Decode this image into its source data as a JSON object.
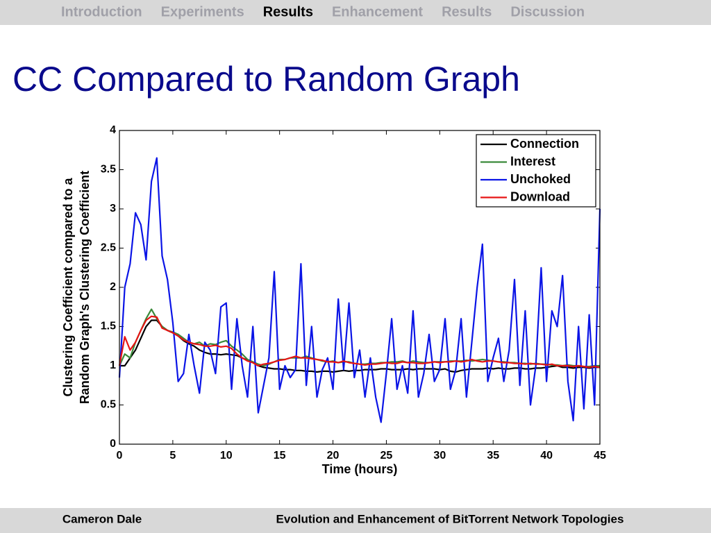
{
  "nav": {
    "items": [
      "Introduction",
      "Experiments",
      "Results",
      "Enhancement",
      "Results",
      "Discussion"
    ],
    "active": 2
  },
  "title": "CC Compared to Random Graph",
  "footer": {
    "author": "Cameron Dale",
    "talk": "Evolution and Enhancement of BitTorrent Network Topologies"
  },
  "chart_data": {
    "type": "line",
    "xlabel": "Time (hours)",
    "ylabel": [
      "Clustering Coefficient compared to a",
      "Random Graph's Clustering Coefficient"
    ],
    "xlim": [
      0,
      45
    ],
    "xticks": [
      0,
      5,
      10,
      15,
      20,
      25,
      30,
      35,
      40,
      45
    ],
    "ylim": [
      0,
      4
    ],
    "yticks": [
      0,
      0.5,
      1,
      1.5,
      2,
      2.5,
      3,
      3.5,
      4
    ],
    "legend": "upper right",
    "x": [
      0,
      0.5,
      1,
      1.5,
      2,
      2.5,
      3,
      3.5,
      4,
      4.5,
      5,
      5.5,
      6,
      6.5,
      7,
      7.5,
      8,
      8.5,
      9,
      9.5,
      10,
      10.5,
      11,
      11.5,
      12,
      12.5,
      13,
      13.5,
      14,
      14.5,
      15,
      15.5,
      16,
      16.5,
      17,
      17.5,
      18,
      18.5,
      19,
      19.5,
      20,
      20.5,
      21,
      21.5,
      22,
      22.5,
      23,
      23.5,
      24,
      24.5,
      25,
      25.5,
      26,
      26.5,
      27,
      27.5,
      28,
      28.5,
      29,
      29.5,
      30,
      30.5,
      31,
      31.5,
      32,
      32.5,
      33,
      33.5,
      34,
      34.5,
      35,
      35.5,
      36,
      36.5,
      37,
      37.5,
      38,
      38.5,
      39,
      39.5,
      40,
      40.5,
      41,
      41.5,
      42,
      42.5,
      43,
      43.5,
      44,
      44.5,
      45
    ],
    "series": [
      {
        "name": "Connection",
        "color": "#000000",
        "values": [
          1.0,
          1.0,
          1.1,
          1.2,
          1.35,
          1.5,
          1.58,
          1.58,
          1.5,
          1.45,
          1.42,
          1.38,
          1.32,
          1.28,
          1.25,
          1.2,
          1.17,
          1.15,
          1.15,
          1.14,
          1.15,
          1.14,
          1.13,
          1.1,
          1.07,
          1.04,
          1.0,
          0.98,
          0.97,
          0.96,
          0.96,
          0.95,
          0.95,
          0.94,
          0.94,
          0.93,
          0.93,
          0.92,
          0.93,
          0.93,
          0.92,
          0.93,
          0.94,
          0.93,
          0.94,
          0.94,
          0.95,
          0.95,
          0.95,
          0.96,
          0.96,
          0.95,
          0.95,
          0.95,
          0.96,
          0.95,
          0.96,
          0.96,
          0.96,
          0.96,
          0.95,
          0.96,
          0.93,
          0.92,
          0.94,
          0.95,
          0.96,
          0.96,
          0.96,
          0.97,
          0.96,
          0.97,
          0.96,
          0.96,
          0.97,
          0.97,
          0.96,
          0.96,
          0.97,
          0.97,
          0.98,
          0.99,
          1.0,
          0.98,
          0.98,
          0.97,
          0.98,
          0.98,
          0.97,
          0.98,
          0.98
        ]
      },
      {
        "name": "Interest",
        "color": "#3a8a3a",
        "values": [
          1.0,
          1.15,
          1.1,
          1.3,
          1.45,
          1.6,
          1.72,
          1.6,
          1.5,
          1.45,
          1.43,
          1.4,
          1.35,
          1.3,
          1.28,
          1.3,
          1.25,
          1.28,
          1.27,
          1.3,
          1.32,
          1.25,
          1.2,
          1.15,
          1.08,
          1.05,
          1.02,
          1.0,
          1.02,
          1.05,
          1.08,
          1.08,
          1.1,
          1.1,
          1.1,
          1.12,
          1.1,
          1.08,
          1.06,
          1.05,
          1.06,
          1.04,
          1.05,
          1.05,
          1.03,
          1.02,
          1.02,
          1.03,
          1.03,
          1.04,
          1.04,
          1.05,
          1.05,
          1.06,
          1.04,
          1.06,
          1.05,
          1.04,
          1.04,
          1.05,
          1.05,
          1.05,
          1.06,
          1.06,
          1.06,
          1.07,
          1.06,
          1.07,
          1.08,
          1.07,
          1.06,
          1.05,
          1.05,
          1.04,
          1.04,
          1.03,
          1.03,
          1.02,
          1.03,
          1.02,
          1.02,
          1.01,
          1.01,
          1.0,
          1.01,
          1.0,
          1.0,
          0.99,
          0.99,
          1.0,
          1.0
        ]
      },
      {
        "name": "Unchoked",
        "color": "#0a14e6",
        "values": [
          0.85,
          2.0,
          2.3,
          2.95,
          2.8,
          2.35,
          3.35,
          3.65,
          2.4,
          2.1,
          1.55,
          0.8,
          0.9,
          1.4,
          1.0,
          0.65,
          1.3,
          1.2,
          0.9,
          1.75,
          1.8,
          0.7,
          1.6,
          1.0,
          0.6,
          1.5,
          0.4,
          0.75,
          1.1,
          2.2,
          0.7,
          1.0,
          0.85,
          0.95,
          2.3,
          0.75,
          1.5,
          0.6,
          0.95,
          1.1,
          0.7,
          1.85,
          0.95,
          1.8,
          0.85,
          1.2,
          0.6,
          1.1,
          0.6,
          0.28,
          0.9,
          1.6,
          0.7,
          1.0,
          0.65,
          1.7,
          0.6,
          0.9,
          1.4,
          0.8,
          0.95,
          1.6,
          0.7,
          0.95,
          1.6,
          0.6,
          1.3,
          2.0,
          2.55,
          0.8,
          1.1,
          1.35,
          0.8,
          1.2,
          2.1,
          0.75,
          1.7,
          0.5,
          1.0,
          2.25,
          0.8,
          1.7,
          1.5,
          2.15,
          0.8,
          0.3,
          1.5,
          0.45,
          1.65,
          0.5,
          3.0
        ]
      },
      {
        "name": "Download",
        "color": "#e61414",
        "values": [
          1.0,
          1.37,
          1.2,
          1.3,
          1.45,
          1.58,
          1.63,
          1.62,
          1.48,
          1.45,
          1.42,
          1.38,
          1.33,
          1.3,
          1.28,
          1.27,
          1.25,
          1.25,
          1.26,
          1.24,
          1.25,
          1.22,
          1.15,
          1.1,
          1.06,
          1.04,
          1.0,
          1.02,
          1.03,
          1.05,
          1.07,
          1.08,
          1.1,
          1.12,
          1.1,
          1.1,
          1.09,
          1.08,
          1.07,
          1.05,
          1.05,
          1.04,
          1.06,
          1.04,
          1.03,
          1.02,
          1.01,
          1.02,
          1.02,
          1.03,
          1.04,
          1.03,
          1.03,
          1.05,
          1.04,
          1.04,
          1.03,
          1.03,
          1.04,
          1.05,
          1.04,
          1.05,
          1.05,
          1.06,
          1.05,
          1.06,
          1.08,
          1.06,
          1.05,
          1.06,
          1.06,
          1.05,
          1.04,
          1.04,
          1.03,
          1.03,
          1.02,
          1.03,
          1.02,
          1.02,
          1.01,
          1.02,
          1.0,
          1.0,
          1.0,
          0.99,
          1.0,
          0.99,
          0.98,
          0.99,
          0.98
        ]
      }
    ]
  }
}
